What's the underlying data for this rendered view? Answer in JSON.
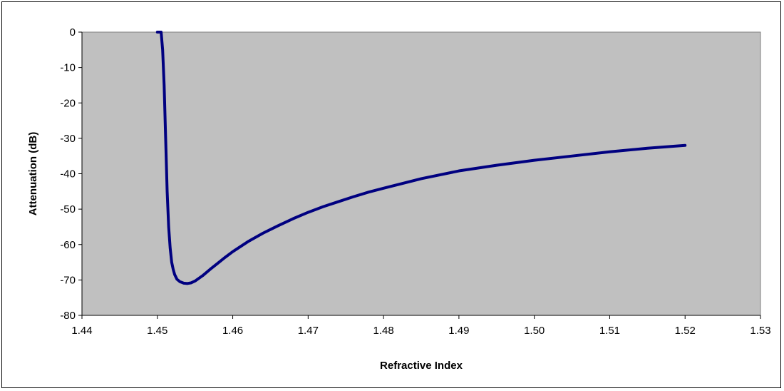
{
  "chart_data": {
    "type": "line",
    "title": "",
    "xlabel": "Refractive Index",
    "ylabel": "Attenuation (dB)",
    "xlim": [
      1.44,
      1.53
    ],
    "ylim": [
      -80,
      0
    ],
    "x_ticks": [
      "1.44",
      "1.45",
      "1.46",
      "1.47",
      "1.48",
      "1.49",
      "1.50",
      "1.51",
      "1.52",
      "1.53"
    ],
    "y_ticks": [
      "0",
      "-10",
      "-20",
      "-30",
      "-40",
      "-50",
      "-60",
      "-70",
      "-80"
    ],
    "grid": false,
    "legend": "none",
    "colors": {
      "plot_background": "#c0c0c0",
      "line": "#000080"
    },
    "series": [
      {
        "x": [
          1.45,
          1.4505,
          1.4507,
          1.4509,
          1.4511,
          1.4513,
          1.4515,
          1.4517,
          1.4519,
          1.4521,
          1.4523,
          1.4526,
          1.453,
          1.4535,
          1.454,
          1.4545,
          1.455,
          1.456,
          1.457,
          1.458,
          1.459,
          1.46,
          1.462,
          1.464,
          1.466,
          1.468,
          1.47,
          1.472,
          1.474,
          1.476,
          1.478,
          1.48,
          1.485,
          1.49,
          1.495,
          1.5,
          1.505,
          1.51,
          1.515,
          1.52
        ],
        "y": [
          0,
          0,
          -5,
          -15,
          -30,
          -45,
          -55,
          -61,
          -65,
          -67,
          -68.5,
          -69.8,
          -70.5,
          -70.9,
          -71,
          -70.8,
          -70.3,
          -68.8,
          -67,
          -65.3,
          -63.6,
          -62,
          -59.2,
          -56.8,
          -54.7,
          -52.7,
          -50.9,
          -49.3,
          -47.9,
          -46.5,
          -45.2,
          -44.1,
          -41.4,
          -39.2,
          -37.6,
          -36.2,
          -35,
          -33.8,
          -32.8,
          -32
        ]
      }
    ]
  }
}
